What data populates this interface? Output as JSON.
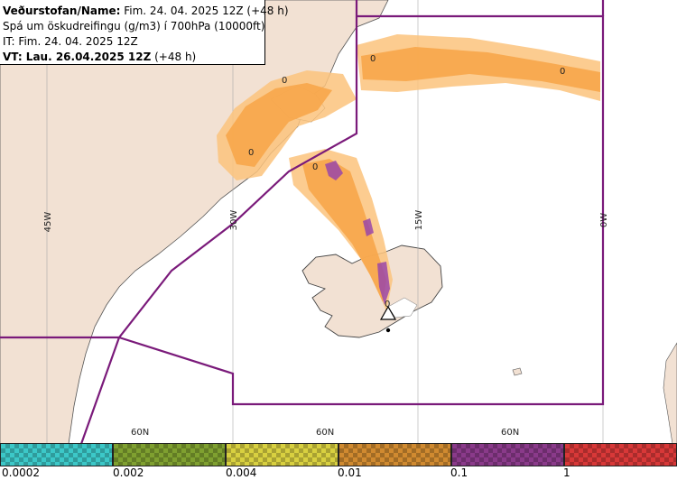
{
  "info": {
    "line1_label": "Veðurstofan/Name:",
    "line1_value": " Fim. 24. 04. 2025 12Z (+48 h)",
    "line2": "Spá um öskudreifingu (g/m3) í 700hPa (10000ft)",
    "line3": "IT: Fim. 24. 04. 2025 12Z",
    "line4_label": "VT: Lau. 26.04.2025 12Z",
    "line4_value": " (+48 h)"
  },
  "map": {
    "longitude_labels": [
      "45W",
      "30W",
      "15W",
      "0W"
    ],
    "latitude_labels": [
      "60N",
      "60N",
      "60N"
    ],
    "contour_labels": [
      "0",
      "0",
      "0",
      "0",
      "0",
      "0"
    ],
    "colors": {
      "land": "#f2e1d3",
      "sea": "#ffffff",
      "grid": "#aaaaaa",
      "boundary": "#7a1a7a",
      "ash_low": "#fbc37d",
      "ash_mid": "#f7a64a",
      "ash_high": "#9a46a8"
    }
  },
  "scale": {
    "labels": [
      "0.0002",
      "0.002",
      "0.004",
      "0.01",
      "0.1",
      "1"
    ],
    "colors": [
      "#3cc8c8",
      "#7fa030",
      "#d8d040",
      "#d08a30",
      "#8a3a8a",
      "#d83838"
    ]
  }
}
